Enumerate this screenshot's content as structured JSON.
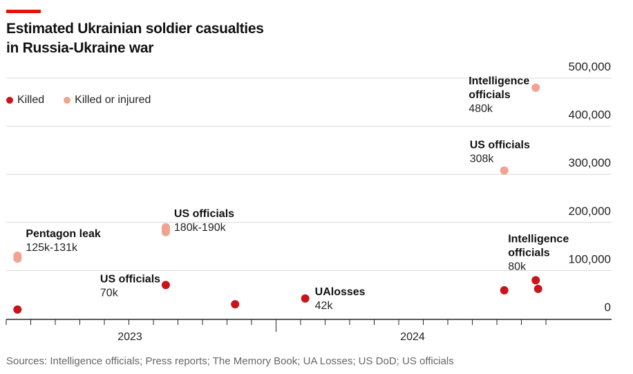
{
  "title": "Estimated Ukrainian soldier casualties in Russia-Ukraine war",
  "title_lines": [
    "Estimated Ukrainian soldier casualties",
    "in Russia-Ukraine war"
  ],
  "legend": [
    {
      "label": "Killed",
      "color": "#c8141b"
    },
    {
      "label": "Killed or injured",
      "color": "#f2a291"
    }
  ],
  "source": "Sources: Intelligence officials; Press reports; The Memory Book; UA Losses; US DoD; US officials",
  "chart_data": {
    "type": "scatter",
    "ylim": [
      0,
      500000
    ],
    "yticks": [
      0,
      100000,
      200000,
      300000,
      400000,
      500000
    ],
    "ytick_labels": [
      "0",
      "100,000",
      "200,000",
      "300,000",
      "400,000",
      "500,000"
    ],
    "xtick_labels": [
      "2023",
      "2024"
    ],
    "grid": true,
    "legend_placement": "top-left",
    "series": [
      {
        "name": "Killed",
        "color": "#c8141b",
        "points": [
          {
            "x": "2022-08-15",
            "y": 19000
          },
          {
            "x": "2023-02-15",
            "y": 70000,
            "label": "US officials",
            "value_label": "70k"
          },
          {
            "x": "2023-05-12",
            "y": 30000
          },
          {
            "x": "2023-08-07",
            "y": 42000,
            "label": "UAlosses",
            "value_label": "42k"
          },
          {
            "x": "2024-04-10",
            "y": 59000
          },
          {
            "x": "2024-05-19",
            "y": 80000,
            "label": "Intelligence officials",
            "value_label": "80k"
          },
          {
            "x": "2024-05-22",
            "y": 62000
          }
        ]
      },
      {
        "name": "Killed or injured",
        "color": "#f2a291",
        "points": [
          {
            "x": "2022-08-15",
            "y": [
              125000,
              131000
            ],
            "label": "Pentagon leak",
            "value_label": "125k-131k"
          },
          {
            "x": "2023-02-15",
            "y": [
              180000,
              190000
            ],
            "label": "US officials",
            "value_label": "180k-190k"
          },
          {
            "x": "2024-04-10",
            "y": 308000,
            "label": "US officials",
            "value_label": "308k"
          },
          {
            "x": "2024-05-19",
            "y": 480000,
            "label": "Intelligence officials",
            "value_label": "480k"
          }
        ]
      }
    ]
  }
}
